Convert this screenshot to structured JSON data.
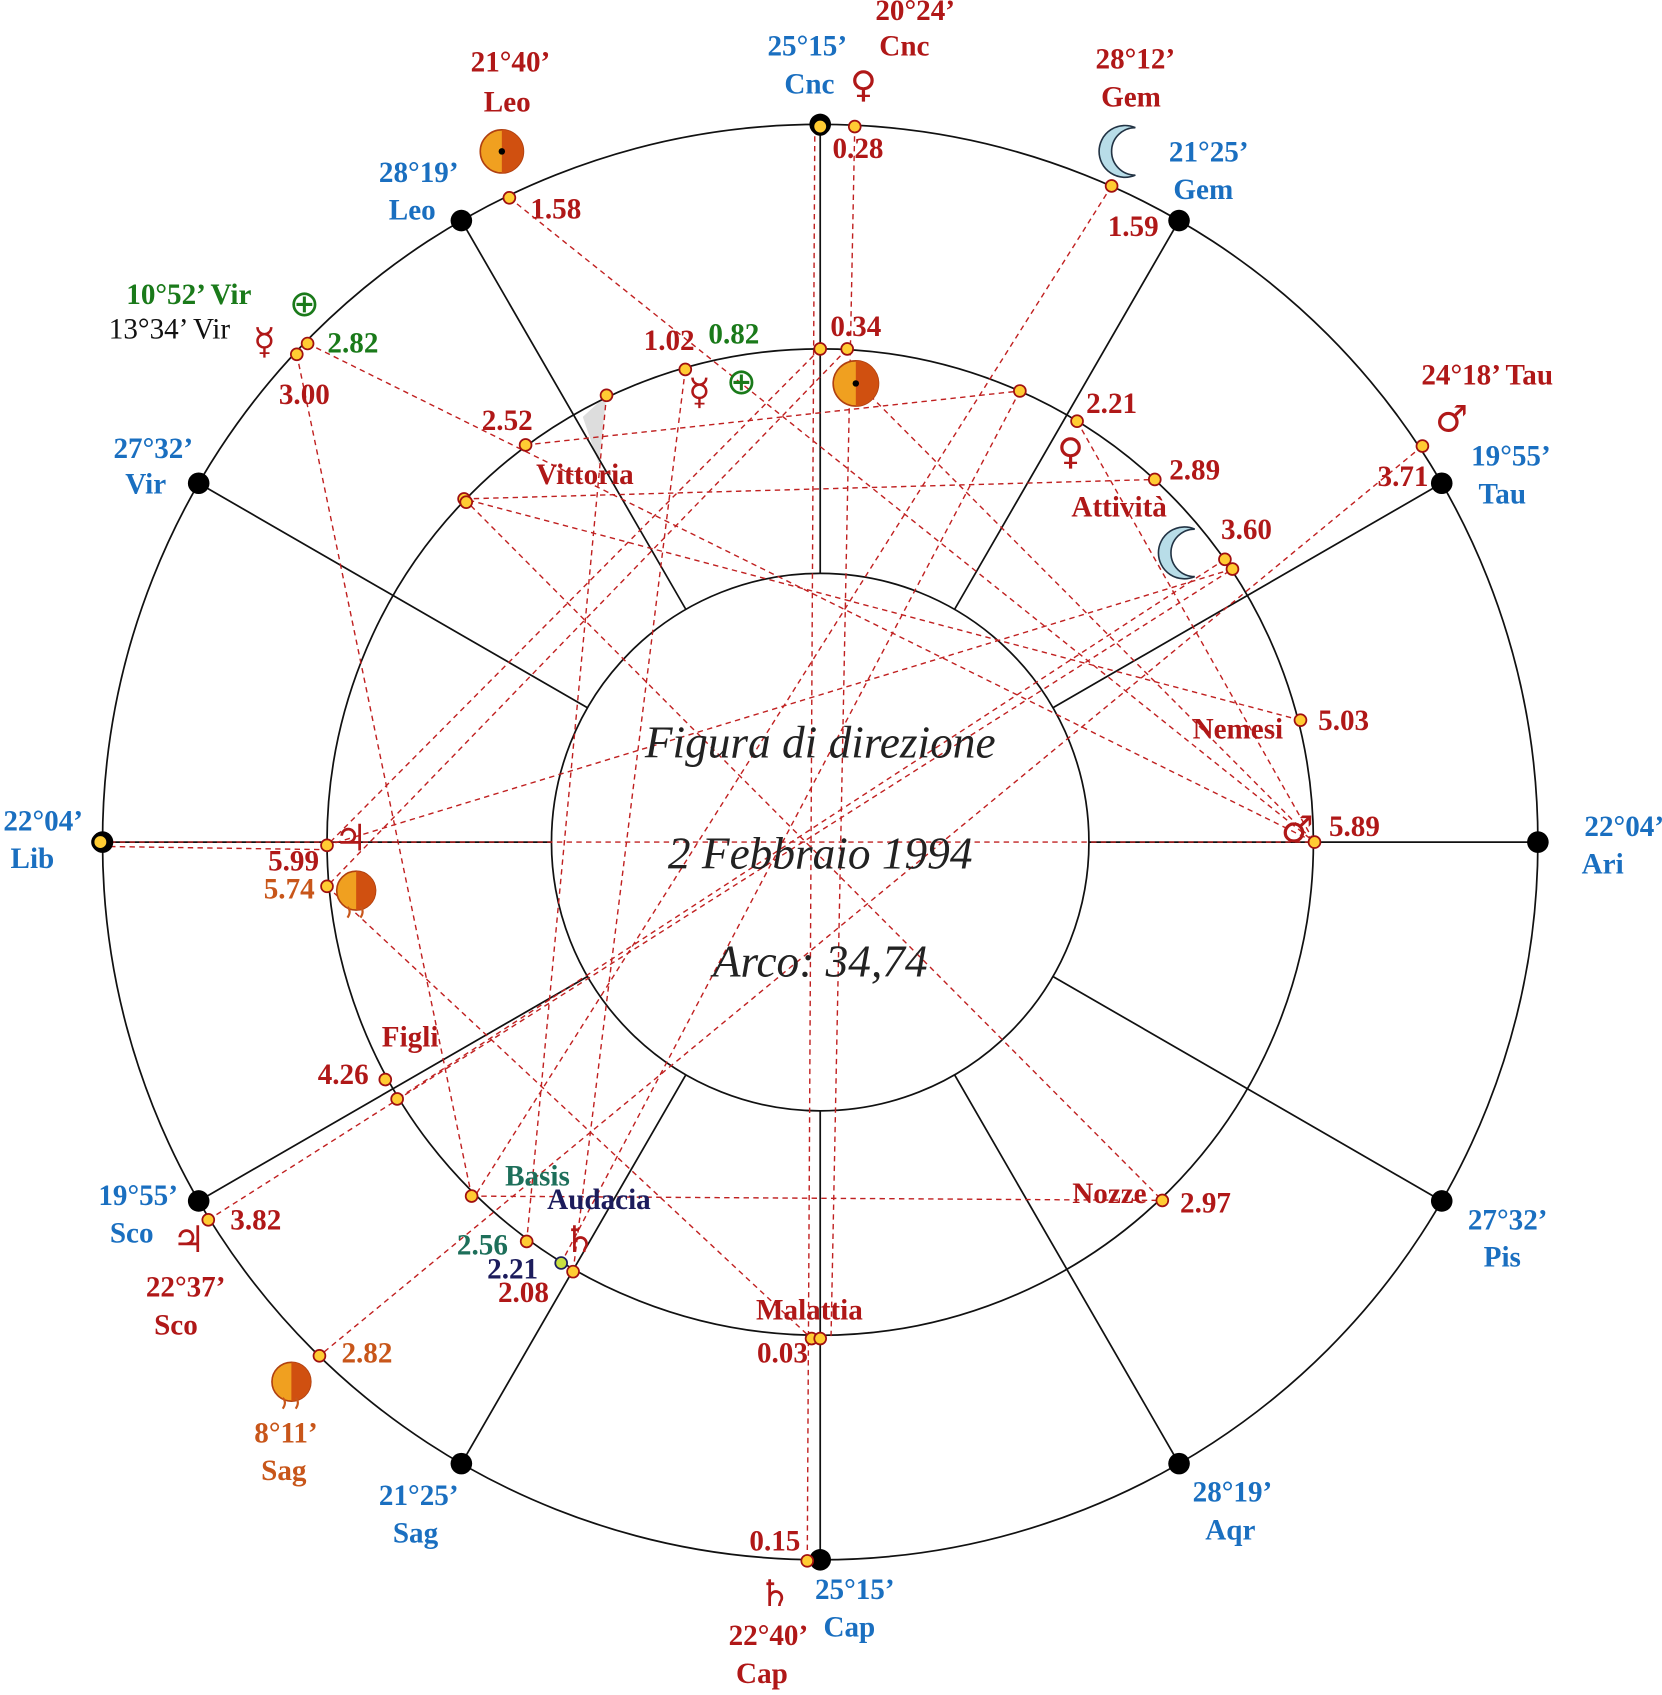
{
  "center": {
    "title": "Figura di direzione",
    "date": "2 Febbraio 1994",
    "arc": "Arco: 34,74"
  },
  "cusps": [
    {
      "degree": "25°15’",
      "sign": "Cnc"
    },
    {
      "degree": "21°25’",
      "sign": "Gem"
    },
    {
      "degree": "19°55’",
      "sign": "Tau"
    },
    {
      "degree": "22°04’",
      "sign": "Ari"
    },
    {
      "degree": "27°32’",
      "sign": "Pis"
    },
    {
      "degree": "28°19’",
      "sign": "Aqr"
    },
    {
      "degree": "25°15’",
      "sign": "Cap"
    },
    {
      "degree": "21°25’",
      "sign": "Sag"
    },
    {
      "degree": "19°55’",
      "sign": "Sco"
    },
    {
      "degree": "22°04’",
      "sign": "Lib"
    },
    {
      "degree": "27°32’",
      "sign": "Vir"
    },
    {
      "degree": "28°19’",
      "sign": "Leo"
    }
  ],
  "planets": [
    {
      "position": "20°24’",
      "sign": "Cnc",
      "symbol": "♀"
    },
    {
      "position": "21°40’",
      "sign": "Leo"
    },
    {
      "position": "28°12’",
      "sign": "Gem"
    },
    {
      "position": "10°52’ Vir",
      "symbol": "⊕"
    },
    {
      "position": "13°34’ Vir",
      "symbol": "☿"
    },
    {
      "position": "24°18’ Tau",
      "symbol": "♂"
    },
    {
      "position": "22°37’",
      "sign": "Sco",
      "symbol": "♃"
    },
    {
      "position": "8°11’",
      "sign": "Sag"
    },
    {
      "position": "22°40’",
      "sign": "Cap",
      "symbol": "♄"
    }
  ],
  "directed_symbols": [
    "☿",
    "⊕",
    "♀",
    "♂",
    "♃",
    "♄"
  ],
  "values": [
    "0.28",
    "1.58",
    "1.59",
    "2.82",
    "3.00",
    "0.34",
    "1.02",
    "0.82",
    "2.52",
    "2.21",
    "2.89",
    "3.71",
    "3.60",
    "5.03",
    "5.89",
    "5.99",
    "5.74",
    "4.26",
    "3.82",
    "2.82",
    "2.97",
    "2.56",
    "2.21",
    "2.08",
    "0.03",
    "0.15"
  ],
  "parts": [
    "Vittoria",
    "Attività",
    "Nemesi",
    "Figli",
    "Basis",
    "Audacia",
    "Nozze",
    "Malattia"
  ]
}
